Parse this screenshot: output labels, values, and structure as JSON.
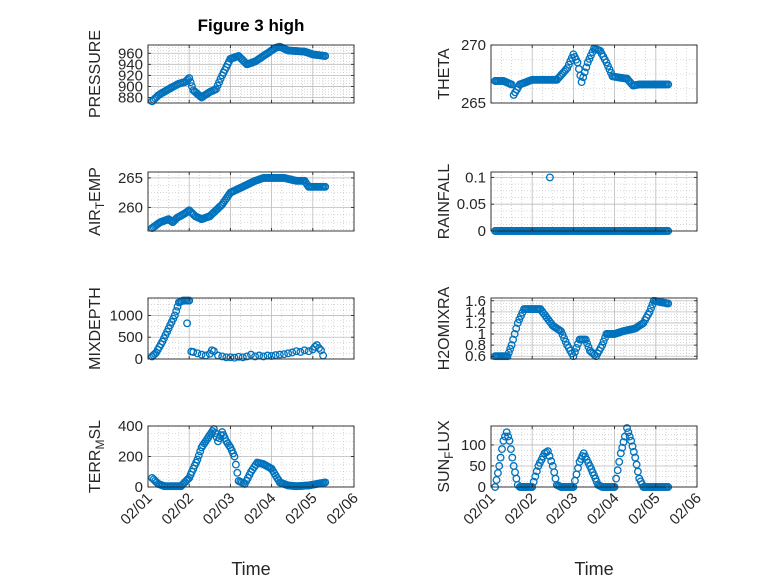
{
  "figure": {
    "title": "Figure 3 high"
  },
  "colors": {
    "marker": "#0072BD",
    "axis": "#262626",
    "grid": "#bdbdbd",
    "background": "#ffffff"
  },
  "x_axis": {
    "label": "Time",
    "tick_labels": [
      "02/01",
      "02/02",
      "02/03",
      "02/04",
      "02/05",
      "02/06"
    ],
    "range_days": [
      0,
      5
    ],
    "data_range_days": [
      0.1,
      4.3
    ]
  },
  "chart_data": [
    {
      "type": "scatter",
      "ylabel_parts": [
        "PRESSURE"
      ],
      "ylim": [
        870,
        975
      ],
      "yticks": [
        880,
        900,
        920,
        940,
        960
      ],
      "ytick_labels": [
        "880",
        "900",
        "920",
        "940",
        "960"
      ],
      "keypoints": [
        [
          0.1,
          873
        ],
        [
          0.25,
          884
        ],
        [
          0.5,
          895
        ],
        [
          0.75,
          905
        ],
        [
          0.9,
          908
        ],
        [
          1.0,
          915
        ],
        [
          1.1,
          893
        ],
        [
          1.3,
          880
        ],
        [
          1.5,
          890
        ],
        [
          1.65,
          895
        ],
        [
          1.8,
          920
        ],
        [
          2.0,
          950
        ],
        [
          2.2,
          955
        ],
        [
          2.4,
          940
        ],
        [
          2.6,
          945
        ],
        [
          2.9,
          960
        ],
        [
          3.1,
          970
        ],
        [
          3.2,
          972
        ],
        [
          3.4,
          965
        ],
        [
          3.8,
          963
        ],
        [
          4.0,
          958
        ],
        [
          4.3,
          955
        ]
      ]
    },
    {
      "type": "scatter",
      "ylabel_parts": [
        "THETA"
      ],
      "ylim": [
        265,
        270
      ],
      "yticks": [
        265,
        270
      ],
      "ytick_labels": [
        "265",
        "270"
      ],
      "keypoints": [
        [
          0.1,
          266.9
        ],
        [
          0.3,
          266.9
        ],
        [
          0.5,
          266.6
        ],
        [
          0.55,
          265.7
        ],
        [
          0.7,
          266.6
        ],
        [
          1.0,
          267
        ],
        [
          1.3,
          267
        ],
        [
          1.6,
          267
        ],
        [
          1.85,
          268
        ],
        [
          2.0,
          269.2
        ],
        [
          2.1,
          268.5
        ],
        [
          2.2,
          266.8
        ],
        [
          2.35,
          268.5
        ],
        [
          2.5,
          269.7
        ],
        [
          2.65,
          269.5
        ],
        [
          2.8,
          268.5
        ],
        [
          2.95,
          267.3
        ],
        [
          3.1,
          267.2
        ],
        [
          3.3,
          267.1
        ],
        [
          3.45,
          266.5
        ],
        [
          3.6,
          266.6
        ],
        [
          4.3,
          266.6
        ]
      ]
    },
    {
      "type": "scatter",
      "ylabel_parts": [
        "AIR",
        "T",
        "EMP"
      ],
      "ylim": [
        256,
        266
      ],
      "yticks": [
        260,
        265
      ],
      "ytick_labels": [
        "260",
        "265"
      ],
      "keypoints": [
        [
          0.1,
          256.5
        ],
        [
          0.3,
          257.5
        ],
        [
          0.5,
          258
        ],
        [
          0.6,
          257.5
        ],
        [
          0.7,
          258.2
        ],
        [
          0.9,
          259
        ],
        [
          1.0,
          259.5
        ],
        [
          1.15,
          258.5
        ],
        [
          1.3,
          258
        ],
        [
          1.5,
          258.5
        ],
        [
          1.8,
          260.5
        ],
        [
          2.0,
          262.5
        ],
        [
          2.3,
          263.5
        ],
        [
          2.6,
          264.5
        ],
        [
          2.8,
          265
        ],
        [
          3.0,
          265
        ],
        [
          3.3,
          265
        ],
        [
          3.6,
          264.5
        ],
        [
          3.8,
          264.5
        ],
        [
          3.9,
          263.5
        ],
        [
          4.3,
          263.5
        ]
      ]
    },
    {
      "type": "scatter",
      "ylabel_parts": [
        "RAINFALL"
      ],
      "ylim": [
        0,
        0.11
      ],
      "yticks": [
        0,
        0.05,
        0.1
      ],
      "ytick_labels": [
        "0",
        "0.05",
        "0.1"
      ],
      "keypoints": [
        [
          0.1,
          0
        ],
        [
          4.3,
          0
        ]
      ],
      "extra_points": [
        [
          1.43,
          0.1
        ]
      ]
    },
    {
      "type": "scatter",
      "ylabel_parts": [
        "MIXDEPTH"
      ],
      "ylim": [
        0,
        1400
      ],
      "yticks": [
        0,
        500,
        1000
      ],
      "ytick_labels": [
        "0",
        "500",
        "1000"
      ],
      "keypoints": [
        [
          0.1,
          60
        ],
        [
          0.2,
          150
        ],
        [
          0.35,
          400
        ],
        [
          0.5,
          700
        ],
        [
          0.65,
          1000
        ],
        [
          0.75,
          1300
        ],
        [
          0.85,
          1340
        ],
        [
          1.0,
          1340
        ]
      ],
      "extra_points": [
        [
          0.95,
          820
        ],
        [
          1.05,
          170
        ],
        [
          1.1,
          160
        ],
        [
          1.2,
          130
        ],
        [
          1.3,
          100
        ],
        [
          1.4,
          80
        ],
        [
          1.5,
          120
        ],
        [
          1.55,
          200
        ],
        [
          1.6,
          180
        ],
        [
          1.7,
          80
        ],
        [
          1.8,
          60
        ],
        [
          1.9,
          40
        ],
        [
          2.0,
          40
        ],
        [
          2.1,
          30
        ],
        [
          2.2,
          50
        ],
        [
          2.3,
          40
        ],
        [
          2.4,
          60
        ],
        [
          2.5,
          100
        ],
        [
          2.6,
          60
        ],
        [
          2.7,
          80
        ],
        [
          2.8,
          60
        ],
        [
          2.9,
          80
        ],
        [
          3.0,
          70
        ],
        [
          3.1,
          90
        ],
        [
          3.2,
          100
        ],
        [
          3.3,
          110
        ],
        [
          3.4,
          130
        ],
        [
          3.5,
          150
        ],
        [
          3.6,
          180
        ],
        [
          3.7,
          160
        ],
        [
          3.8,
          200
        ],
        [
          3.9,
          180
        ],
        [
          4.0,
          220
        ],
        [
          4.05,
          280
        ],
        [
          4.1,
          320
        ],
        [
          4.15,
          250
        ],
        [
          4.2,
          200
        ],
        [
          4.25,
          80
        ]
      ]
    },
    {
      "type": "scatter",
      "ylabel_parts": [
        "H2OMIXRA"
      ],
      "ylim": [
        0.55,
        1.65
      ],
      "yticks": [
        0.6,
        0.8,
        1.0,
        1.2,
        1.4,
        1.6
      ],
      "ytick_labels": [
        "0.6",
        "0.8",
        "1",
        "1.2",
        "1.4",
        "1.6"
      ],
      "keypoints": [
        [
          0.1,
          0.6
        ],
        [
          0.4,
          0.6
        ],
        [
          0.5,
          0.8
        ],
        [
          0.65,
          1.2
        ],
        [
          0.8,
          1.45
        ],
        [
          1.2,
          1.45
        ],
        [
          1.35,
          1.3
        ],
        [
          1.5,
          1.15
        ],
        [
          1.7,
          1.05
        ],
        [
          1.85,
          0.8
        ],
        [
          2.0,
          0.6
        ],
        [
          2.15,
          0.9
        ],
        [
          2.3,
          0.9
        ],
        [
          2.4,
          0.7
        ],
        [
          2.55,
          0.6
        ],
        [
          2.7,
          0.8
        ],
        [
          2.8,
          1.0
        ],
        [
          3.0,
          1.0
        ],
        [
          3.2,
          1.05
        ],
        [
          3.5,
          1.1
        ],
        [
          3.7,
          1.2
        ],
        [
          3.85,
          1.4
        ],
        [
          3.95,
          1.6
        ],
        [
          4.3,
          1.55
        ]
      ]
    },
    {
      "type": "scatter",
      "ylabel_parts": [
        "TERR",
        "M",
        "SL"
      ],
      "ylim": [
        0,
        400
      ],
      "yticks": [
        0,
        200,
        400
      ],
      "ytick_labels": [
        "0",
        "200",
        "400"
      ],
      "keypoints": [
        [
          0.1,
          60
        ],
        [
          0.25,
          20
        ],
        [
          0.4,
          5
        ],
        [
          0.8,
          5
        ],
        [
          1.0,
          60
        ],
        [
          1.2,
          180
        ],
        [
          1.3,
          260
        ],
        [
          1.4,
          300
        ],
        [
          1.5,
          340
        ],
        [
          1.6,
          380
        ],
        [
          1.7,
          300
        ],
        [
          1.8,
          360
        ],
        [
          1.9,
          300
        ],
        [
          2.0,
          260
        ],
        [
          2.1,
          200
        ],
        [
          2.2,
          40
        ],
        [
          2.35,
          20
        ],
        [
          2.5,
          100
        ],
        [
          2.65,
          160
        ],
        [
          2.8,
          150
        ],
        [
          3.0,
          120
        ],
        [
          3.2,
          30
        ],
        [
          3.4,
          10
        ],
        [
          3.6,
          5
        ],
        [
          3.9,
          10
        ],
        [
          4.1,
          20
        ],
        [
          4.3,
          30
        ]
      ]
    },
    {
      "type": "scatter",
      "ylabel_parts": [
        "SUN",
        "F",
        "LUX"
      ],
      "ylim": [
        0,
        145
      ],
      "yticks": [
        0,
        50,
        100
      ],
      "ytick_labels": [
        "0",
        "50",
        "100"
      ],
      "keypoints": [
        [
          0.1,
          0
        ],
        [
          0.2,
          50
        ],
        [
          0.3,
          110
        ],
        [
          0.38,
          130
        ],
        [
          0.45,
          110
        ],
        [
          0.55,
          50
        ],
        [
          0.65,
          5
        ],
        [
          0.7,
          0
        ],
        [
          1.0,
          0
        ],
        [
          1.15,
          50
        ],
        [
          1.3,
          80
        ],
        [
          1.38,
          85
        ],
        [
          1.5,
          50
        ],
        [
          1.6,
          5
        ],
        [
          1.7,
          0
        ],
        [
          2.0,
          0
        ],
        [
          2.15,
          60
        ],
        [
          2.25,
          80
        ],
        [
          2.4,
          50
        ],
        [
          2.6,
          5
        ],
        [
          2.7,
          0
        ],
        [
          3.0,
          0
        ],
        [
          3.15,
          80
        ],
        [
          3.25,
          120
        ],
        [
          3.3,
          140
        ],
        [
          3.4,
          110
        ],
        [
          3.5,
          70
        ],
        [
          3.6,
          20
        ],
        [
          3.7,
          0
        ],
        [
          4.3,
          0
        ]
      ]
    }
  ]
}
